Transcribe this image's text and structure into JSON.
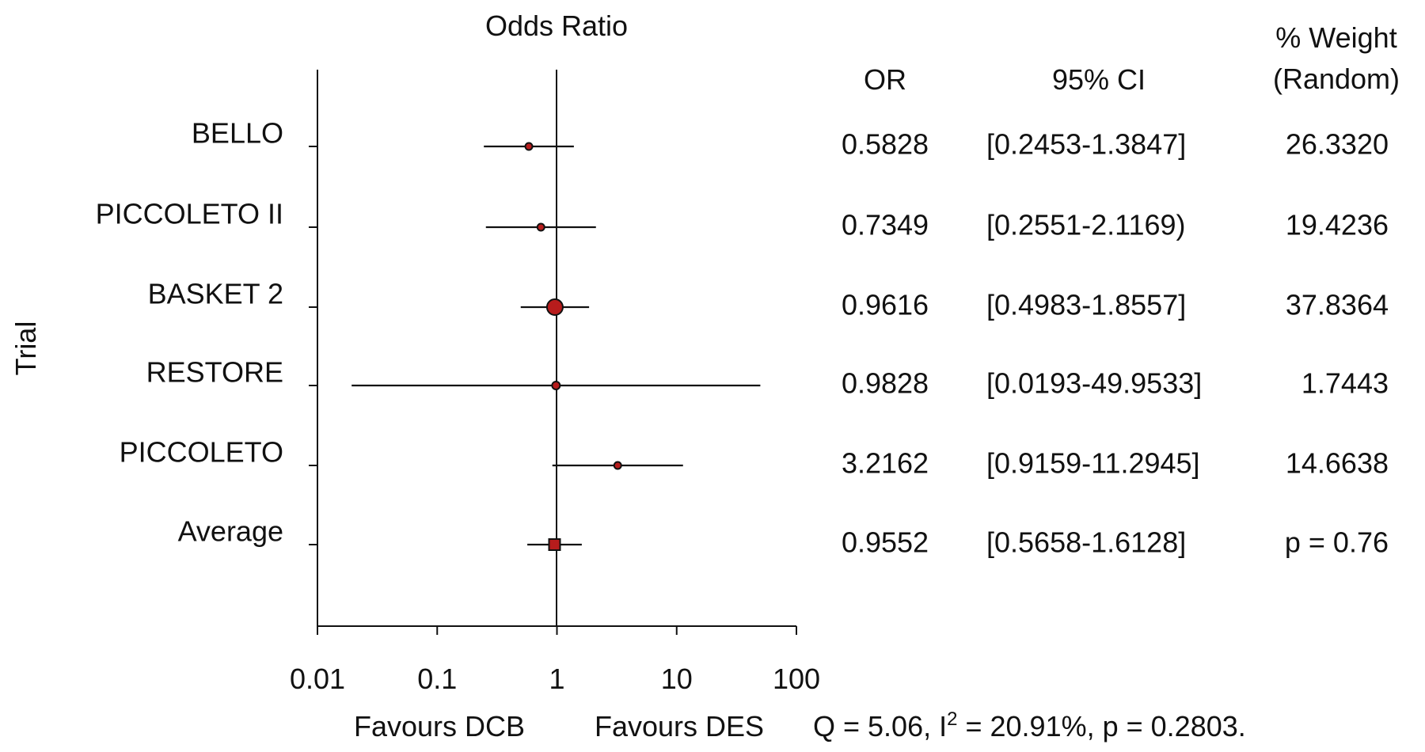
{
  "chart_data": {
    "type": "forest",
    "title": "Odds Ratio",
    "ylabel": "Trial",
    "xscale": "log",
    "xlim": [
      0.01,
      100
    ],
    "xticks": [
      "0.01",
      "0.1",
      "1",
      "10",
      "100"
    ],
    "xtick_values": [
      0.01,
      0.1,
      1,
      10,
      100
    ],
    "reference_line": 1,
    "favours_left": "Favours DCB",
    "favours_right": "Favours DES",
    "column_headers": {
      "or": "OR",
      "ci": "95% CI",
      "weight_line1": "% Weight",
      "weight_line2": "(Random)"
    },
    "rows": [
      {
        "label": "BELLO",
        "or": 0.5828,
        "lo": 0.2453,
        "hi": 1.3847,
        "or_text": "0.5828",
        "ci_text": "[0.2453-1.3847]",
        "weight_text": "26.3320",
        "weight": 26.332,
        "marker": "circle"
      },
      {
        "label": "PICCOLETO II",
        "or": 0.7349,
        "lo": 0.2551,
        "hi": 2.1169,
        "or_text": "0.7349",
        "ci_text": "[0.2551-2.1169)",
        "weight_text": "19.4236",
        "weight": 19.4236,
        "marker": "circle"
      },
      {
        "label": "BASKET 2",
        "or": 0.9616,
        "lo": 0.4983,
        "hi": 1.8557,
        "or_text": "0.9616",
        "ci_text": "[0.4983-1.8557]",
        "weight_text": "37.8364",
        "weight": 37.8364,
        "marker": "circle"
      },
      {
        "label": "RESTORE",
        "or": 0.9828,
        "lo": 0.0193,
        "hi": 49.9533,
        "or_text": "0.9828",
        "ci_text": "[0.0193-49.9533]",
        "weight_text": "1.7443",
        "weight": 1.7443,
        "marker": "circle"
      },
      {
        "label": "PICCOLETO",
        "or": 3.2162,
        "lo": 0.9159,
        "hi": 11.2945,
        "or_text": "3.2162",
        "ci_text": "[0.9159-11.2945]",
        "weight_text": "14.6638",
        "weight": 14.6638,
        "marker": "circle"
      },
      {
        "label": "Average",
        "or": 0.9552,
        "lo": 0.5658,
        "hi": 1.6128,
        "or_text": "0.9552",
        "ci_text": "[0.5658-1.6128]",
        "weight_text": "p = 0.76",
        "marker": "square"
      }
    ],
    "heterogeneity": {
      "prefix": "Q = 5.06, I",
      "sup": "2",
      "suffix": " = 20.91%, p = 0.2803."
    },
    "colors": {
      "marker_fill": "#b71c1c",
      "line": "#111111"
    }
  }
}
